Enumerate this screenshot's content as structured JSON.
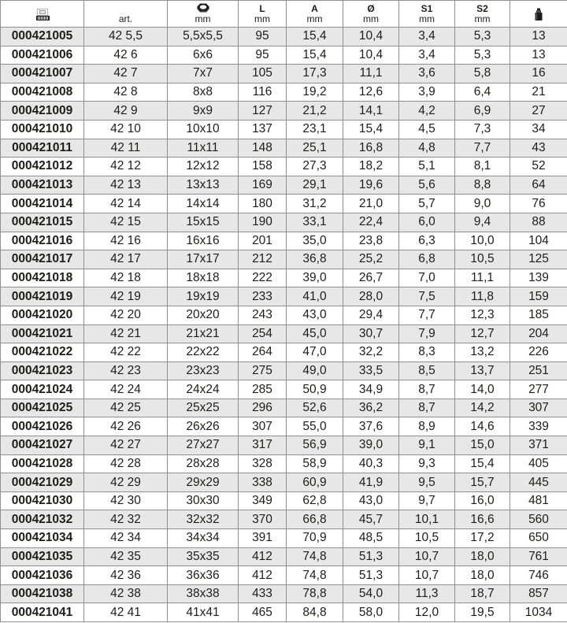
{
  "table": {
    "columns": [
      {
        "id": "ean",
        "icon": "barcode-icon"
      },
      {
        "id": "art",
        "bottom": "art."
      },
      {
        "id": "size",
        "icon": "nut-icon",
        "bottom": "mm"
      },
      {
        "id": "length_l",
        "top": "L",
        "bottom": "mm"
      },
      {
        "id": "dim_a",
        "top": "A",
        "bottom": "mm"
      },
      {
        "id": "diameter",
        "top": "Ø",
        "bottom": "mm"
      },
      {
        "id": "s1",
        "top": "S1",
        "bottom": "mm"
      },
      {
        "id": "s2",
        "top": "S2",
        "bottom": "mm"
      },
      {
        "id": "weight",
        "icon": "weight-icon"
      }
    ],
    "rows": [
      [
        "000421005",
        "42 5,5",
        "5,5x5,5",
        "95",
        "15,4",
        "10,4",
        "3,4",
        "5,3",
        "13"
      ],
      [
        "000421006",
        "42 6",
        "6x6",
        "95",
        "15,4",
        "10,4",
        "3,4",
        "5,3",
        "13"
      ],
      [
        "000421007",
        "42 7",
        "7x7",
        "105",
        "17,3",
        "11,1",
        "3,6",
        "5,8",
        "16"
      ],
      [
        "000421008",
        "42 8",
        "8x8",
        "116",
        "19,2",
        "12,6",
        "3,9",
        "6,4",
        "21"
      ],
      [
        "000421009",
        "42 9",
        "9x9",
        "127",
        "21,2",
        "14,1",
        "4,2",
        "6,9",
        "27"
      ],
      [
        "000421010",
        "42 10",
        "10x10",
        "137",
        "23,1",
        "15,4",
        "4,5",
        "7,3",
        "34"
      ],
      [
        "000421011",
        "42 11",
        "11x11",
        "148",
        "25,1",
        "16,8",
        "4,8",
        "7,7",
        "43"
      ],
      [
        "000421012",
        "42 12",
        "12x12",
        "158",
        "27,3",
        "18,2",
        "5,1",
        "8,1",
        "52"
      ],
      [
        "000421013",
        "42 13",
        "13x13",
        "169",
        "29,1",
        "19,6",
        "5,6",
        "8,8",
        "64"
      ],
      [
        "000421014",
        "42 14",
        "14x14",
        "180",
        "31,2",
        "21,0",
        "5,7",
        "9,0",
        "76"
      ],
      [
        "000421015",
        "42 15",
        "15x15",
        "190",
        "33,1",
        "22,4",
        "6,0",
        "9,4",
        "88"
      ],
      [
        "000421016",
        "42 16",
        "16x16",
        "201",
        "35,0",
        "23,8",
        "6,3",
        "10,0",
        "104"
      ],
      [
        "000421017",
        "42 17",
        "17x17",
        "212",
        "36,8",
        "25,2",
        "6,8",
        "10,5",
        "125"
      ],
      [
        "000421018",
        "42 18",
        "18x18",
        "222",
        "39,0",
        "26,7",
        "7,0",
        "11,1",
        "139"
      ],
      [
        "000421019",
        "42 19",
        "19x19",
        "233",
        "41,0",
        "28,0",
        "7,5",
        "11,8",
        "159"
      ],
      [
        "000421020",
        "42 20",
        "20x20",
        "243",
        "43,0",
        "29,4",
        "7,7",
        "12,3",
        "185"
      ],
      [
        "000421021",
        "42 21",
        "21x21",
        "254",
        "45,0",
        "30,7",
        "7,9",
        "12,7",
        "204"
      ],
      [
        "000421022",
        "42 22",
        "22x22",
        "264",
        "47,0",
        "32,2",
        "8,3",
        "13,2",
        "226"
      ],
      [
        "000421023",
        "42 23",
        "23x23",
        "275",
        "49,0",
        "33,5",
        "8,5",
        "13,7",
        "251"
      ],
      [
        "000421024",
        "42 24",
        "24x24",
        "285",
        "50,9",
        "34,9",
        "8,7",
        "14,0",
        "277"
      ],
      [
        "000421025",
        "42 25",
        "25x25",
        "296",
        "52,6",
        "36,2",
        "8,7",
        "14,2",
        "307"
      ],
      [
        "000421026",
        "42 26",
        "26x26",
        "307",
        "55,0",
        "37,6",
        "8,9",
        "14,6",
        "339"
      ],
      [
        "000421027",
        "42 27",
        "27x27",
        "317",
        "56,9",
        "39,0",
        "9,1",
        "15,0",
        "371"
      ],
      [
        "000421028",
        "42 28",
        "28x28",
        "328",
        "58,9",
        "40,3",
        "9,3",
        "15,4",
        "405"
      ],
      [
        "000421029",
        "42 29",
        "29x29",
        "338",
        "60,9",
        "41,9",
        "9,5",
        "15,7",
        "445"
      ],
      [
        "000421030",
        "42 30",
        "30x30",
        "349",
        "62,8",
        "43,0",
        "9,7",
        "16,0",
        "481"
      ],
      [
        "000421032",
        "42 32",
        "32x32",
        "370",
        "66,8",
        "45,7",
        "10,1",
        "16,6",
        "560"
      ],
      [
        "000421034",
        "42 34",
        "34x34",
        "391",
        "70,9",
        "48,5",
        "10,5",
        "17,2",
        "650"
      ],
      [
        "000421035",
        "42 35",
        "35x35",
        "412",
        "74,8",
        "51,3",
        "10,7",
        "18,0",
        "761"
      ],
      [
        "000421036",
        "42 36",
        "36x36",
        "412",
        "74,8",
        "51,3",
        "10,7",
        "18,0",
        "746"
      ],
      [
        "000421038",
        "42 38",
        "38x38",
        "433",
        "78,8",
        "54,0",
        "11,3",
        "18,7",
        "857"
      ],
      [
        "000421041",
        "42 41",
        "41x41",
        "465",
        "84,8",
        "58,0",
        "12,0",
        "19,5",
        "1034"
      ]
    ]
  },
  "colors": {
    "row_stripe": "#e7e7e7",
    "border": "#8f8f8f",
    "text": "#1d1d1b",
    "background": "#ffffff"
  }
}
